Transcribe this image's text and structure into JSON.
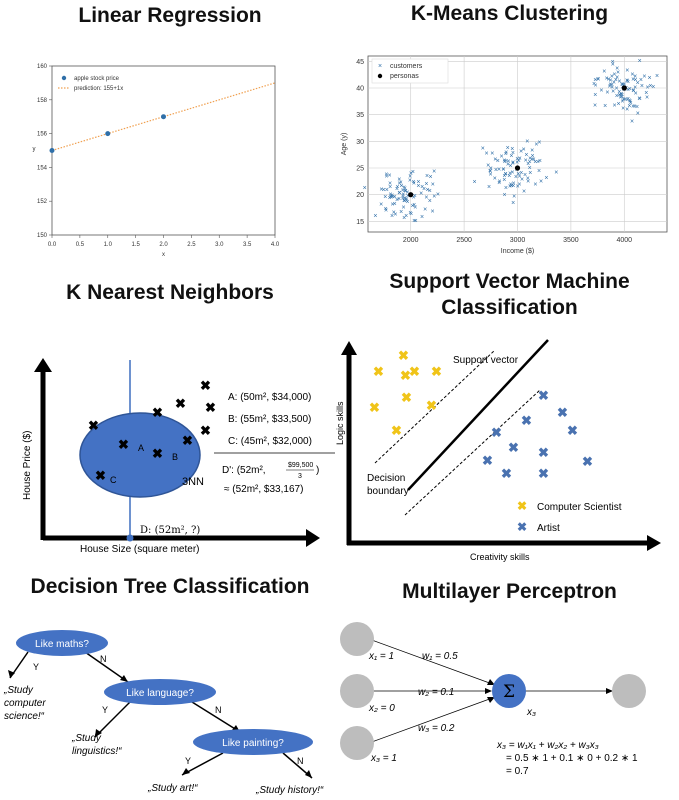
{
  "colors": {
    "blue": "#3f6fbf",
    "nodeBlue": "#4472c4",
    "yellow": "#f0c419",
    "gray": "#bdbdbd",
    "scatter": "#2f6fa8",
    "orange": "#f0a050"
  },
  "panels": {
    "linreg": {
      "title": "Linear Regression",
      "legend_points": "apple stock price",
      "legend_line": "prediction: 155+1x",
      "xlabel": "x",
      "ylabel": "y",
      "xticks": [
        "0.0",
        "0.5",
        "1.0",
        "1.5",
        "2.0",
        "2.5",
        "3.0",
        "3.5",
        "4.0"
      ],
      "yticks": [
        "150",
        "152",
        "154",
        "156",
        "158",
        "160"
      ]
    },
    "kmeans": {
      "title": "K-Means Clustering",
      "legend_customers": "customers",
      "legend_personas": "personas",
      "xlabel": "Income ($)",
      "ylabel": "Age (y)",
      "xticks": [
        "2000",
        "2500",
        "3000",
        "3500",
        "4000"
      ],
      "yticks": [
        "15",
        "20",
        "25",
        "30",
        "35",
        "40",
        "45"
      ]
    },
    "knn": {
      "title": "K Nearest Neighbors",
      "ylabel": "House Price ($)",
      "xlabel": "House Size (square meter)",
      "label_a": "A",
      "label_b": "B",
      "label_c": "C",
      "nn_label": "3NN",
      "line_a": "A: (50m², $34,000)",
      "line_b": "B: (55m², $33,500)",
      "line_c": "C: (45m², $32,000)",
      "line_d1": "D': (52m²,",
      "frac_num": "$99,500",
      "frac_den": "3",
      "line_d2": "≈ (52m², $33,167)",
      "query": "D: (52m², ?)"
    },
    "svm": {
      "title_line1": "Support Vector Machine",
      "title_line2": "Classification",
      "ylabel": "Logic skills",
      "xlabel": "Creativity skills",
      "support_vector": "Support vector",
      "decision_line1": "Decision",
      "decision_line2": "boundary",
      "legend_cs": "Computer Scientist",
      "legend_artist": "Artist"
    },
    "dtree": {
      "title": "Decision Tree Classification",
      "node1": "Like maths?",
      "node2": "Like language?",
      "node3": "Like painting?",
      "y": "Y",
      "n": "N",
      "leaf1_l1": "„Study",
      "leaf1_l2": "computer",
      "leaf1_l3": "science!“",
      "leaf2_l1": "„Study",
      "leaf2_l2": "linguistics!“",
      "leaf3": "„Study art!“",
      "leaf4": "„Study history!“"
    },
    "mlp": {
      "title": "Multilayer Perceptron",
      "x1": "x₁ = 1",
      "x2": "x₂ = 0",
      "x3in": "x₃ = 1",
      "w1": "w₁ = 0.5",
      "w2": "w₂ = 0.1",
      "w3": "w₃ = 0.2",
      "sigma": "Σ",
      "out": "x₃",
      "eq1": "x₃ = w₁x₁ + w₂x₂ + w₃x₃",
      "eq2": "= 0.5 ∗ 1 + 0.1 ∗ 0 + 0.2 ∗ 1",
      "eq3": "= 0.7"
    }
  },
  "chart_data": [
    {
      "type": "scatter",
      "title": "Linear Regression",
      "xlabel": "x",
      "ylabel": "y",
      "xlim": [
        0,
        4
      ],
      "ylim": [
        150,
        160
      ],
      "series": [
        {
          "name": "apple stock price",
          "x": [
            0,
            1,
            2
          ],
          "y": [
            155,
            156,
            157
          ]
        },
        {
          "name": "prediction: 155+1x",
          "x": [
            0,
            4
          ],
          "y": [
            155,
            159
          ]
        }
      ]
    },
    {
      "type": "scatter",
      "title": "K-Means Clustering",
      "xlabel": "Income ($)",
      "ylabel": "Age (y)",
      "xlim": [
        1600,
        4400
      ],
      "ylim": [
        13,
        46
      ],
      "clusters": [
        {
          "center": [
            2000,
            20
          ],
          "spread": [
            150,
            2.2
          ],
          "count": 90
        },
        {
          "center": [
            3000,
            25
          ],
          "spread": [
            150,
            2.2
          ],
          "count": 90
        },
        {
          "center": [
            4000,
            40
          ],
          "spread": [
            150,
            2.2
          ],
          "count": 90
        }
      ],
      "series": [
        {
          "name": "personas",
          "x": [
            2000,
            3000,
            4000
          ],
          "y": [
            20,
            25,
            40
          ]
        }
      ]
    }
  ]
}
